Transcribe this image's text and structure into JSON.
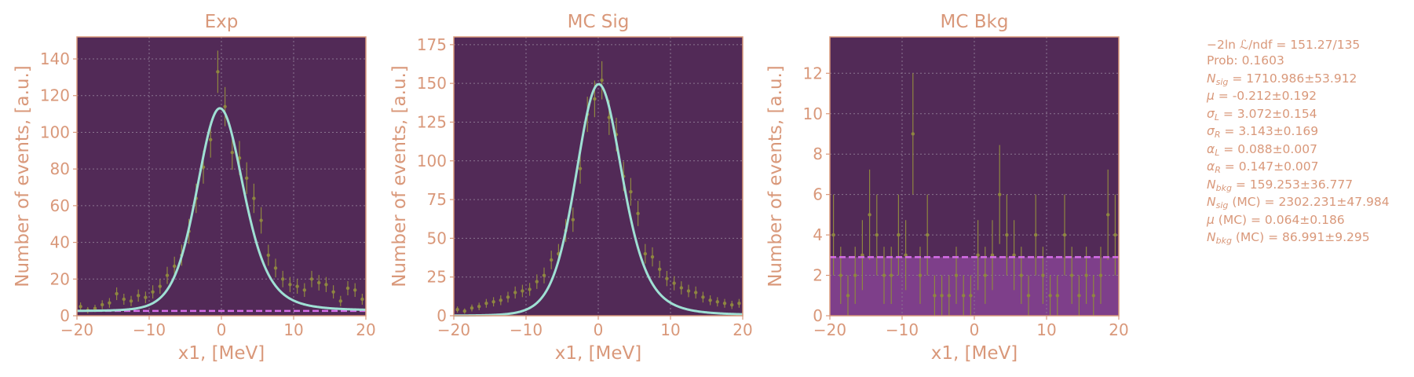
{
  "theme": {
    "text": "#d9987a",
    "axes_bg": "#522a57",
    "frame": "#d9987a",
    "grid": "#8a7590",
    "fit_line": "#9fe0d4",
    "bkg_line": "#d66ee8",
    "bkg_fill": "#7e3f8a",
    "points": "#8e8640"
  },
  "chart_data": [
    {
      "type": "scatter",
      "title": "Exp",
      "xlabel": "x1, [MeV]",
      "ylabel": "Number of events, [a.u.]",
      "xlim": [
        -20,
        20
      ],
      "ylim": [
        0,
        152
      ],
      "xticks": [
        -20,
        -10,
        0,
        10,
        20
      ],
      "xtick_labels": [
        "−20",
        "−10",
        "0",
        "10",
        "20"
      ],
      "yticks": [
        0,
        20,
        40,
        60,
        80,
        100,
        120,
        140
      ],
      "grid": true,
      "model": {
        "norm": 110.5,
        "mu": -0.212,
        "sigmaL": 3.072,
        "sigmaR": 3.143,
        "alphaL": 0.088,
        "alphaR": 0.147,
        "bkg": 2.6
      },
      "series": [
        {
          "role": "data",
          "x": [
            -19.5,
            -18.5,
            -17.5,
            -16.5,
            -15.5,
            -14.5,
            -13.5,
            -12.5,
            -11.5,
            -10.5,
            -9.5,
            -8.5,
            -7.5,
            -6.5,
            -5.5,
            -4.5,
            -3.5,
            -2.5,
            -1.5,
            -0.5,
            0.5,
            1.5,
            2.5,
            3.5,
            4.5,
            5.5,
            6.5,
            7.5,
            8.5,
            9.5,
            10.5,
            11.5,
            12.5,
            13.5,
            14.5,
            15.5,
            16.5,
            17.5,
            18.5,
            19.5
          ],
          "y": [
            5,
            3,
            4,
            6,
            7,
            12,
            9,
            8,
            11,
            10,
            13,
            16,
            22,
            27,
            33,
            46,
            64,
            81,
            96,
            133,
            114,
            89,
            86,
            75,
            64,
            52,
            33,
            26,
            20,
            17,
            16,
            14,
            20,
            18,
            17,
            13,
            8,
            15,
            14,
            9
          ]
        },
        {
          "role": "fit"
        },
        {
          "role": "background"
        }
      ]
    },
    {
      "type": "scatter",
      "title": "MC Sig",
      "xlabel": "x1, [MeV]",
      "ylabel": "Number of events, [a.u.]",
      "xlim": [
        -20,
        20
      ],
      "ylim": [
        0,
        180
      ],
      "xticks": [
        -20,
        -10,
        0,
        10,
        20
      ],
      "xtick_labels": [
        "−20",
        "−10",
        "0",
        "10",
        "20"
      ],
      "yticks": [
        0,
        25,
        50,
        75,
        100,
        125,
        150,
        175
      ],
      "grid": true,
      "model": {
        "norm": 149.5,
        "mu": 0.064,
        "sigmaL": 3.072,
        "sigmaR": 3.143,
        "alphaL": 0.088,
        "alphaR": 0.147,
        "bkg": 0
      },
      "series": [
        {
          "role": "data",
          "x": [
            -19.5,
            -18.5,
            -17.5,
            -16.5,
            -15.5,
            -14.5,
            -13.5,
            -12.5,
            -11.5,
            -10.5,
            -9.5,
            -8.5,
            -7.5,
            -6.5,
            -5.5,
            -4.5,
            -3.5,
            -2.5,
            -1.5,
            -0.5,
            0.5,
            1.5,
            2.5,
            3.5,
            4.5,
            5.5,
            6.5,
            7.5,
            8.5,
            9.5,
            10.5,
            11.5,
            12.5,
            13.5,
            14.5,
            15.5,
            16.5,
            17.5,
            18.5,
            19.5
          ],
          "y": [
            4,
            3,
            5,
            6,
            8,
            9,
            10,
            12,
            15,
            16,
            17,
            22,
            26,
            36,
            40,
            55,
            62,
            95,
            130,
            140,
            152,
            128,
            117,
            90,
            80,
            66,
            40,
            38,
            30,
            24,
            21,
            18,
            16,
            15,
            12,
            10,
            9,
            8,
            7,
            8
          ]
        },
        {
          "role": "fit"
        }
      ]
    },
    {
      "type": "scatter",
      "title": "MC Bkg",
      "xlabel": "x1, [MeV]",
      "ylabel": "Number of events, [a.u.]",
      "xlim": [
        -20,
        20
      ],
      "ylim": [
        0,
        13.8
      ],
      "xticks": [
        -20,
        -10,
        0,
        10,
        20
      ],
      "xtick_labels": [
        "−20",
        "−10",
        "0",
        "10",
        "20"
      ],
      "yticks": [
        0,
        2,
        4,
        6,
        8,
        10,
        12
      ],
      "grid": true,
      "bkg_level": 2.9,
      "series": [
        {
          "role": "data",
          "x": [
            -19.5,
            -18.5,
            -17.5,
            -16.5,
            -15.5,
            -14.5,
            -13.5,
            -12.5,
            -11.5,
            -10.5,
            -9.5,
            -8.5,
            -7.5,
            -6.5,
            -5.5,
            -4.5,
            -3.5,
            -2.5,
            -1.5,
            -0.5,
            0.5,
            1.5,
            2.5,
            3.5,
            4.5,
            5.5,
            6.5,
            7.5,
            8.5,
            9.5,
            10.5,
            11.5,
            12.5,
            13.5,
            14.5,
            15.5,
            16.5,
            17.5,
            18.5,
            19.5
          ],
          "y": [
            4,
            2,
            1,
            2,
            3,
            5,
            4,
            2,
            2,
            4,
            3,
            9,
            2,
            4,
            1,
            1,
            1,
            2,
            1,
            1,
            3,
            2,
            3,
            6,
            4,
            3,
            2,
            1,
            4,
            2,
            1,
            1,
            4,
            2,
            1,
            2,
            1,
            2,
            5,
            4
          ]
        },
        {
          "role": "background"
        }
      ]
    }
  ],
  "fit_params": [
    {
      "label": "−2ln ℒ/ndf = 151.27/135"
    },
    {
      "label": "Prob: 0.1603"
    },
    {
      "sym": "N",
      "sub": "sig",
      "value": " = 1710.986±53.912"
    },
    {
      "sym": "μ",
      "value": " = -0.212±0.192"
    },
    {
      "sym": "σ",
      "sub": "L",
      "value": " = 3.072±0.154"
    },
    {
      "sym": "σ",
      "sub": "R",
      "value": " = 3.143±0.169"
    },
    {
      "sym": "α",
      "sub": "L",
      "value": " = 0.088±0.007"
    },
    {
      "sym": "α",
      "sub": "R",
      "value": " = 0.147±0.007"
    },
    {
      "sym": "N",
      "sub": "bkg",
      "value": " = 159.253±36.777"
    },
    {
      "sym": "N",
      "sub": "sig",
      "value": " (MC) = 2302.231±47.984"
    },
    {
      "sym": "μ",
      "value": " (MC) = 0.064±0.186"
    },
    {
      "sym": "N",
      "sub": "bkg",
      "value": " (MC) = 86.991±9.295"
    }
  ]
}
